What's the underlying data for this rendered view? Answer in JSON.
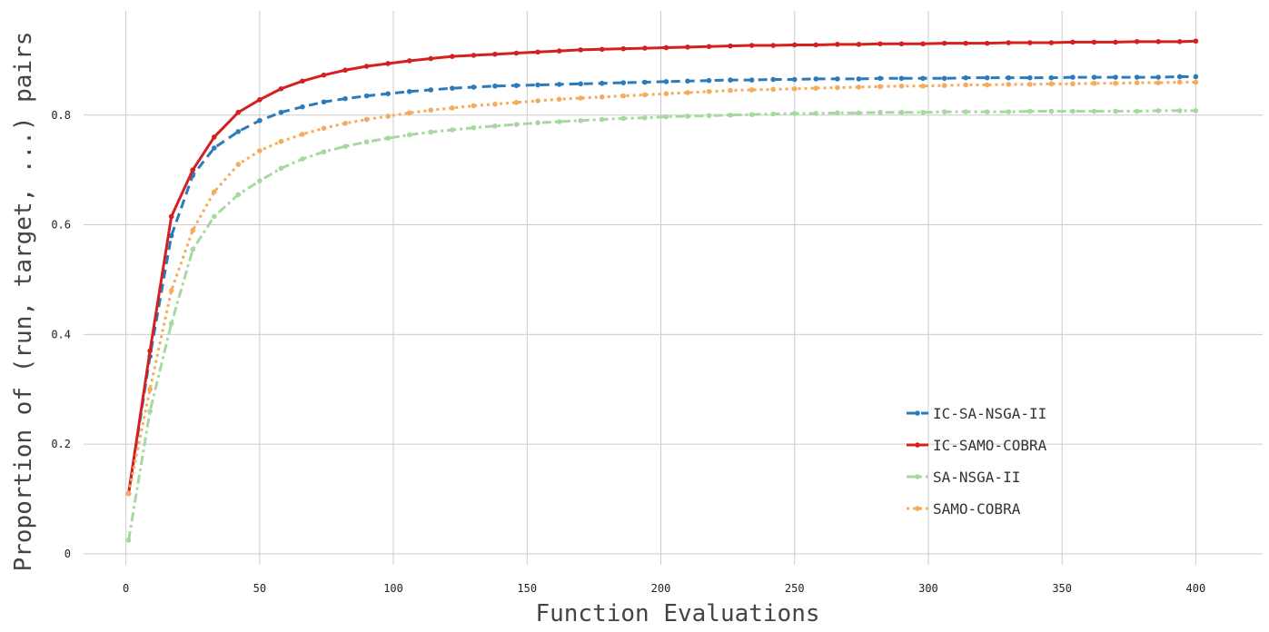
{
  "chart_data": {
    "type": "line",
    "title": "",
    "xlabel": "Function Evaluations",
    "ylabel": "Proportion of (run, target, ...) pairs",
    "xlim": [
      -25,
      425
    ],
    "ylim": [
      -0.02,
      0.99
    ],
    "xticks": [
      0,
      50,
      100,
      150,
      200,
      250,
      300,
      350,
      400
    ],
    "yticks": [
      0,
      0.2,
      0.4,
      0.6,
      0.8
    ],
    "ytick_labels": [
      "0",
      "0.2",
      "0.4",
      "0.6",
      "0.8"
    ],
    "grid": true,
    "legend_position": "bottom-right",
    "x": [
      1,
      9,
      17,
      25,
      33,
      42,
      50,
      58,
      66,
      74,
      82,
      90,
      98,
      106,
      114,
      122,
      130,
      138,
      146,
      154,
      162,
      170,
      178,
      186,
      194,
      202,
      210,
      218,
      226,
      234,
      242,
      250,
      258,
      266,
      274,
      282,
      290,
      298,
      306,
      314,
      322,
      330,
      338,
      346,
      354,
      362,
      370,
      378,
      386,
      394,
      400
    ],
    "series": [
      {
        "name": "IC-SA-NSGA-II",
        "color": "#2b7bba",
        "dash": "10,6",
        "values": [
          0.11,
          0.36,
          0.58,
          0.69,
          0.74,
          0.77,
          0.79,
          0.805,
          0.815,
          0.824,
          0.83,
          0.835,
          0.839,
          0.843,
          0.846,
          0.849,
          0.851,
          0.853,
          0.854,
          0.855,
          0.856,
          0.857,
          0.858,
          0.859,
          0.86,
          0.861,
          0.862,
          0.863,
          0.864,
          0.864,
          0.865,
          0.865,
          0.866,
          0.866,
          0.866,
          0.867,
          0.867,
          0.867,
          0.867,
          0.868,
          0.868,
          0.868,
          0.868,
          0.868,
          0.869,
          0.869,
          0.869,
          0.869,
          0.869,
          0.87,
          0.87
        ]
      },
      {
        "name": "IC-SAMO-COBRA",
        "color": "#d42020",
        "dash": "",
        "values": [
          0.11,
          0.37,
          0.615,
          0.7,
          0.76,
          0.805,
          0.828,
          0.848,
          0.862,
          0.873,
          0.882,
          0.889,
          0.894,
          0.899,
          0.903,
          0.907,
          0.909,
          0.911,
          0.913,
          0.915,
          0.917,
          0.919,
          0.92,
          0.921,
          0.922,
          0.923,
          0.924,
          0.925,
          0.926,
          0.927,
          0.927,
          0.928,
          0.928,
          0.929,
          0.929,
          0.93,
          0.93,
          0.93,
          0.931,
          0.931,
          0.931,
          0.932,
          0.932,
          0.932,
          0.933,
          0.933,
          0.933,
          0.934,
          0.934,
          0.934,
          0.935
        ]
      },
      {
        "name": "SA-NSGA-II",
        "color": "#a6d89f",
        "dash": "10,4,3,4",
        "values": [
          0.025,
          0.26,
          0.42,
          0.555,
          0.615,
          0.655,
          0.68,
          0.703,
          0.72,
          0.733,
          0.743,
          0.751,
          0.758,
          0.764,
          0.769,
          0.773,
          0.777,
          0.78,
          0.783,
          0.786,
          0.788,
          0.79,
          0.792,
          0.794,
          0.795,
          0.797,
          0.798,
          0.799,
          0.8,
          0.801,
          0.802,
          0.803,
          0.803,
          0.804,
          0.804,
          0.805,
          0.805,
          0.805,
          0.806,
          0.806,
          0.806,
          0.806,
          0.807,
          0.807,
          0.807,
          0.807,
          0.807,
          0.807,
          0.808,
          0.808,
          0.808
        ]
      },
      {
        "name": "SAMO-COBRA",
        "color": "#f5ab5b",
        "dash": "3,4",
        "values": [
          0.11,
          0.3,
          0.48,
          0.59,
          0.66,
          0.71,
          0.735,
          0.752,
          0.765,
          0.776,
          0.785,
          0.792,
          0.798,
          0.804,
          0.809,
          0.813,
          0.817,
          0.82,
          0.823,
          0.826,
          0.829,
          0.831,
          0.833,
          0.835,
          0.837,
          0.839,
          0.841,
          0.843,
          0.845,
          0.846,
          0.847,
          0.848,
          0.849,
          0.85,
          0.851,
          0.852,
          0.853,
          0.853,
          0.854,
          0.855,
          0.855,
          0.856,
          0.856,
          0.857,
          0.857,
          0.858,
          0.858,
          0.859,
          0.859,
          0.86,
          0.86
        ]
      }
    ]
  }
}
